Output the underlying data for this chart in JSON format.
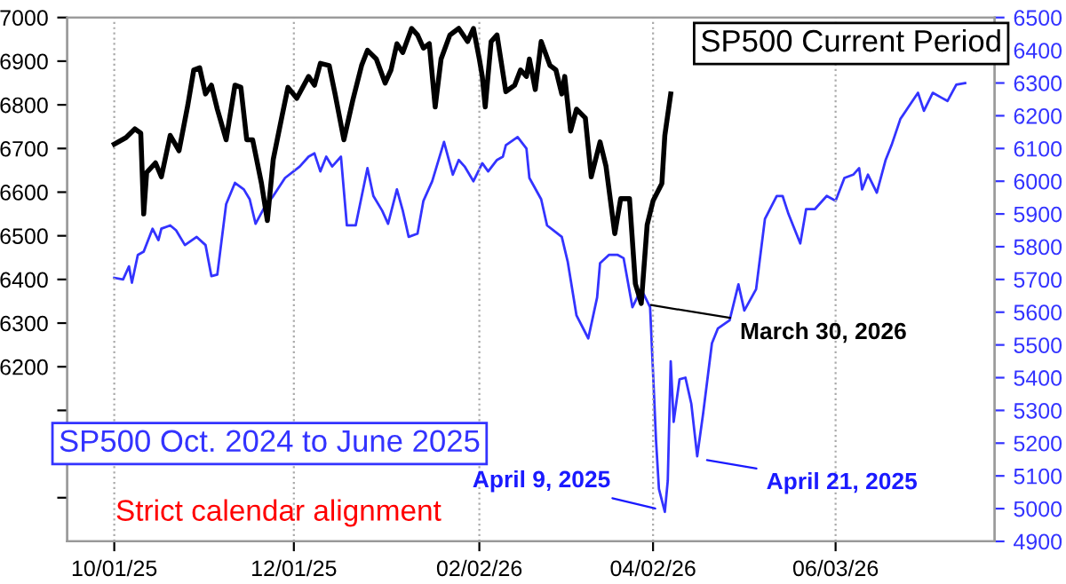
{
  "chart_data": {
    "type": "line",
    "xlim": [
      "2025-09-15",
      "2026-07-27"
    ],
    "xticks": [
      {
        "value": "2025-10-01",
        "label": "10/01/25"
      },
      {
        "value": "2025-12-01",
        "label": "12/01/25"
      },
      {
        "value": "2026-02-02",
        "label": "02/02/26"
      },
      {
        "value": "2026-04-02",
        "label": "04/02/26"
      },
      {
        "value": "2026-06-03",
        "label": "06/03/26"
      }
    ],
    "ylim": [
      5800,
      7000
    ],
    "yticks": [
      {
        "value": 5900,
        "label": null
      },
      {
        "value": 6000,
        "label": null
      },
      {
        "value": 6100,
        "label": null
      },
      6200,
      6300,
      6400,
      6500,
      6600,
      6700,
      6800,
      6900,
      7000
    ],
    "y2lim": [
      4900,
      6500
    ],
    "y2ticks": [
      4900,
      5000,
      5100,
      5200,
      5300,
      5400,
      5500,
      5600,
      5700,
      5800,
      5900,
      6000,
      6100,
      6200,
      6300,
      6400,
      6500
    ],
    "grid": "x",
    "legend": false,
    "marker": "none",
    "line_style": "solid",
    "series": [
      {
        "name": "SP500 Current Period",
        "color": "#000000",
        "x": [
          "2025-10-01",
          "2025-10-05",
          "2025-10-08",
          "2025-10-10",
          "2025-10-11",
          "2025-10-12",
          "2025-10-15",
          "2025-10-17",
          "2025-10-20",
          "2025-10-23",
          "2025-10-26",
          "2025-10-28",
          "2025-10-30",
          "2025-11-01",
          "2025-11-03",
          "2025-11-05",
          "2025-11-08",
          "2025-11-11",
          "2025-11-13",
          "2025-11-15",
          "2025-11-17",
          "2025-11-20",
          "2025-11-22",
          "2025-11-24",
          "2025-11-27",
          "2025-11-29",
          "2025-12-02",
          "2025-12-06",
          "2025-12-08",
          "2025-12-10",
          "2025-12-13",
          "2025-12-15",
          "2025-12-18",
          "2025-12-21",
          "2025-12-24",
          "2025-12-26",
          "2025-12-29",
          "2026-01-01",
          "2026-01-03",
          "2026-01-05",
          "2026-01-07",
          "2026-01-10",
          "2026-01-12",
          "2026-01-14",
          "2026-01-16",
          "2026-01-18",
          "2026-01-20",
          "2026-01-23",
          "2026-01-26",
          "2026-01-29",
          "2026-01-31",
          "2026-02-02",
          "2026-02-03",
          "2026-02-04",
          "2026-02-06",
          "2026-02-08",
          "2026-02-11",
          "2026-02-14",
          "2026-02-16",
          "2026-02-18",
          "2026-02-19",
          "2026-02-21",
          "2026-02-23",
          "2026-02-26",
          "2026-02-28",
          "2026-03-02",
          "2026-03-03",
          "2026-03-05",
          "2026-03-07",
          "2026-03-10",
          "2026-03-12",
          "2026-03-15",
          "2026-03-17",
          "2026-03-20",
          "2026-03-22",
          "2026-03-25",
          "2026-03-27",
          "2026-03-29",
          "2026-03-31",
          "2026-04-02",
          "2026-04-05",
          "2026-04-06",
          "2026-04-08"
        ],
        "values": [
          6710,
          6725,
          6745,
          6735,
          6550,
          6645,
          6667,
          6635,
          6730,
          6695,
          6800,
          6880,
          6885,
          6825,
          6845,
          6790,
          6720,
          6845,
          6840,
          6720,
          6720,
          6620,
          6535,
          6675,
          6775,
          6840,
          6815,
          6865,
          6845,
          6895,
          6890,
          6825,
          6720,
          6810,
          6890,
          6925,
          6905,
          6850,
          6880,
          6940,
          6920,
          6975,
          6960,
          6930,
          6940,
          6795,
          6905,
          6960,
          6975,
          6945,
          6975,
          6905,
          6865,
          6795,
          6945,
          6960,
          6830,
          6845,
          6880,
          6865,
          6905,
          6835,
          6945,
          6890,
          6880,
          6825,
          6865,
          6740,
          6790,
          6770,
          6635,
          6715,
          6660,
          6505,
          6585,
          6585,
          6390,
          6345,
          6525,
          6580,
          6620,
          6730,
          6825
        ]
      },
      {
        "name": "SP500 Oct. 2024 to June 2025",
        "color": "#3333ff",
        "axis": "y2",
        "x": [
          "2025-10-01",
          "2025-10-04",
          "2025-10-06",
          "2025-10-07",
          "2025-10-09",
          "2025-10-11",
          "2025-10-14",
          "2025-10-16",
          "2025-10-17",
          "2025-10-20",
          "2025-10-22",
          "2025-10-25",
          "2025-10-29",
          "2025-11-01",
          "2025-11-03",
          "2025-11-05",
          "2025-11-08",
          "2025-11-11",
          "2025-11-14",
          "2025-11-16",
          "2025-11-18",
          "2025-11-21",
          "2025-11-24",
          "2025-11-28",
          "2025-12-03",
          "2025-12-06",
          "2025-12-08",
          "2025-12-10",
          "2025-12-12",
          "2025-12-14",
          "2025-12-17",
          "2025-12-19",
          "2025-12-22",
          "2025-12-26",
          "2025-12-28",
          "2025-12-31",
          "2026-01-02",
          "2026-01-05",
          "2026-01-07",
          "2026-01-09",
          "2026-01-12",
          "2026-01-14",
          "2026-01-17",
          "2026-01-21",
          "2026-01-24",
          "2026-01-26",
          "2026-01-28",
          "2026-01-31",
          "2026-02-03",
          "2026-02-05",
          "2026-02-08",
          "2026-02-10",
          "2026-02-11",
          "2026-02-15",
          "2026-02-18",
          "2026-02-19",
          "2026-02-23",
          "2026-02-25",
          "2026-03-02",
          "2026-03-04",
          "2026-03-07",
          "2026-03-11",
          "2026-03-14",
          "2026-03-15",
          "2026-03-18",
          "2026-03-21",
          "2026-03-23",
          "2026-03-26",
          "2026-03-29",
          "2026-04-01",
          "2026-04-02",
          "2026-04-03",
          "2026-04-04",
          "2026-04-06",
          "2026-04-07",
          "2026-04-08",
          "2026-04-09",
          "2026-04-11",
          "2026-04-13",
          "2026-04-15",
          "2026-04-17",
          "2026-04-19",
          "2026-04-22",
          "2026-04-24",
          "2026-04-28",
          "2026-05-01",
          "2026-05-03",
          "2026-05-07",
          "2026-05-10",
          "2026-05-14",
          "2026-05-16",
          "2026-05-18",
          "2026-05-22",
          "2026-05-24",
          "2026-05-27",
          "2026-05-31",
          "2026-06-03",
          "2026-06-06",
          "2026-06-09",
          "2026-06-11",
          "2026-06-12",
          "2026-06-14",
          "2026-06-17",
          "2026-06-20",
          "2026-06-22",
          "2026-06-25",
          "2026-06-28",
          "2026-07-01",
          "2026-07-03",
          "2026-07-06",
          "2026-07-09",
          "2026-07-11",
          "2026-07-14",
          "2026-07-17"
        ],
        "values": [
          5705,
          5700,
          5740,
          5690,
          5775,
          5785,
          5855,
          5820,
          5855,
          5865,
          5850,
          5805,
          5830,
          5805,
          5710,
          5715,
          5930,
          5995,
          5975,
          5945,
          5870,
          5920,
          5955,
          6010,
          6045,
          6075,
          6085,
          6030,
          6075,
          6045,
          6075,
          5865,
          5865,
          6040,
          5955,
          5910,
          5870,
          5975,
          5910,
          5830,
          5840,
          5940,
          6000,
          6120,
          6020,
          6065,
          6045,
          6000,
          6055,
          6030,
          6065,
          6075,
          6110,
          6135,
          6100,
          6010,
          5945,
          5865,
          5830,
          5755,
          5590,
          5520,
          5645,
          5750,
          5775,
          5775,
          5765,
          5615,
          5670,
          5615,
          5415,
          5210,
          5060,
          4990,
          5085,
          5450,
          5265,
          5395,
          5400,
          5320,
          5160,
          5290,
          5505,
          5550,
          5575,
          5685,
          5605,
          5670,
          5885,
          5955,
          5955,
          5900,
          5810,
          5915,
          5915,
          5955,
          5940,
          6010,
          6020,
          6040,
          5975,
          6020,
          5965,
          6065,
          6110,
          6190,
          6230,
          6270,
          6215,
          6270,
          6255,
          6245,
          6295,
          6300
        ]
      }
    ],
    "annotations": [
      {
        "text": "March 30, 2026",
        "x": "2026-03-29",
        "y": 6345
      },
      {
        "text": "April 9, 2025",
        "x": "2026-04-06",
        "y": 5870
      },
      {
        "text": "April 21, 2025",
        "x": "2026-04-17",
        "y": 5990
      },
      "Strict calendar alignment"
    ]
  }
}
